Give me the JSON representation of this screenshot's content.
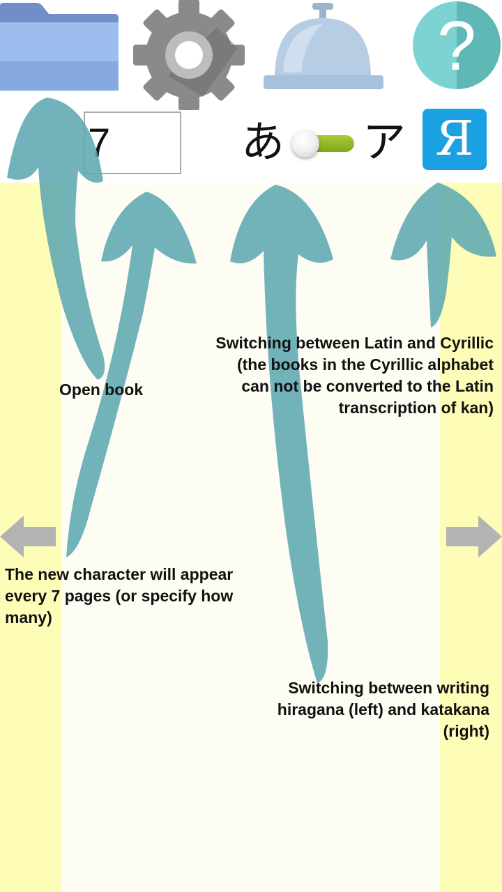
{
  "toolbar": {
    "open_icon": "folder-icon",
    "settings_icon": "gear-icon",
    "bell_icon": "service-bell-icon",
    "help_icon": "help-icon"
  },
  "controls": {
    "pages_value": "7",
    "hiragana_label": "あ",
    "katakana_label": "ア",
    "alphabet_button_label": "Я"
  },
  "notes": {
    "open_book": "Open book",
    "latin_cyrillic": "Switching between Latin and Cyrillic (the books in the Cyrillic alphabet can not be converted to the Latin transcription of kan)",
    "new_character": "The new character will appear every 7 pages (or specify how many)",
    "hira_kata": "Switching between writing hiragana (left) and katakana (right)"
  },
  "navigation": {
    "prev_icon": "arrow-left-icon",
    "next_icon": "arrow-right-icon"
  },
  "colors": {
    "page_band": "#fefdb8",
    "page_center": "#fdfdf4",
    "hint_arrow": "#5fa9b2",
    "accent_blue": "#1ba1e2",
    "toggle_green": "#8dba25"
  }
}
